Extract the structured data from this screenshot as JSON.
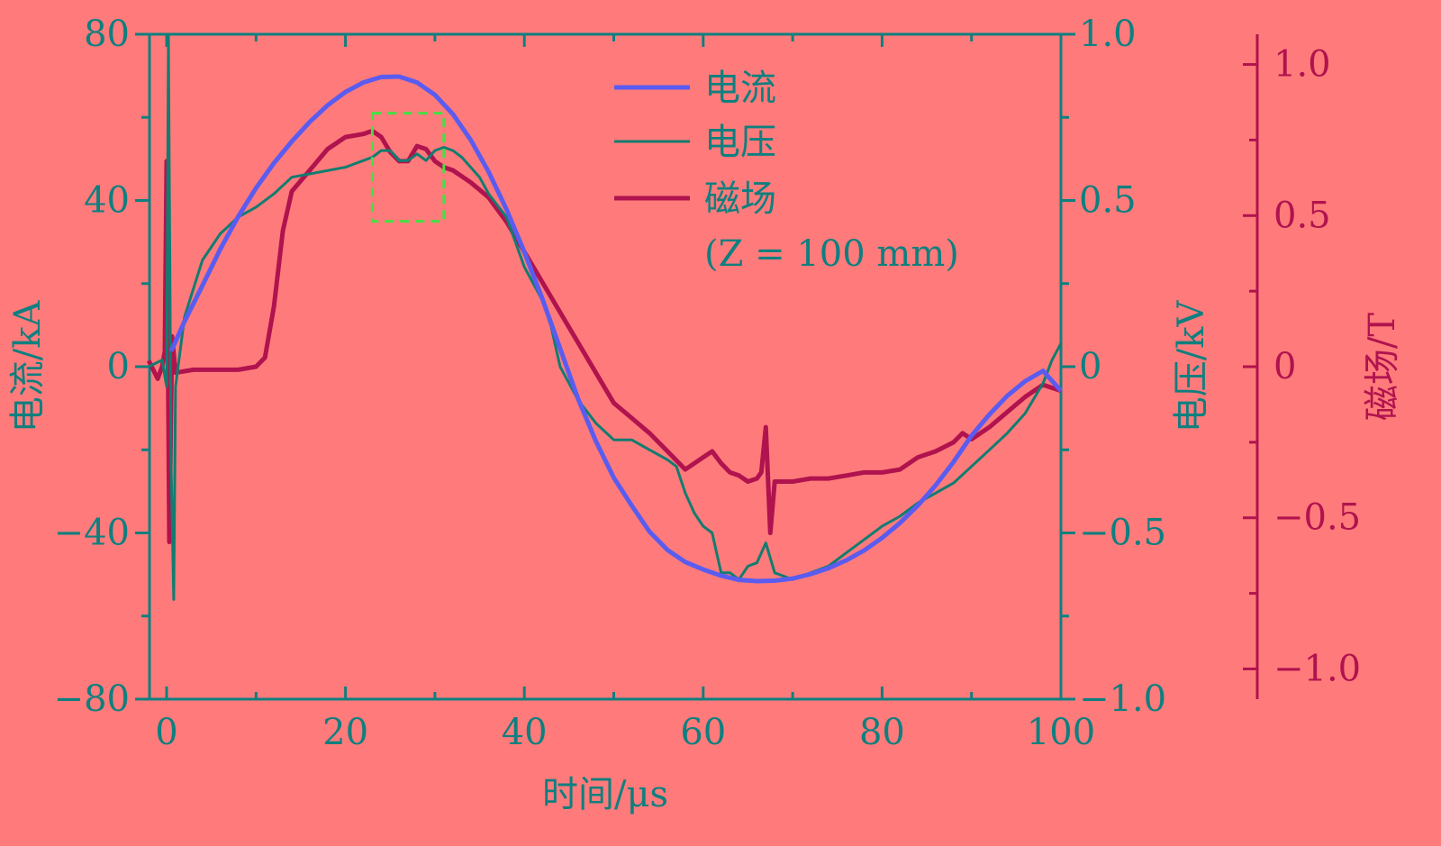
{
  "colors": {
    "background": "#ff7b7b",
    "axis_teal": "#0f7f7f",
    "axis_magenta": "#b0134e",
    "current": "#5a5cf0",
    "voltage": "#127c70",
    "magnetic": "#b0134e",
    "roi_box": "#44e044"
  },
  "chart_data": {
    "type": "line",
    "xlabel": "时间/μs",
    "xlim": [
      -2,
      100
    ],
    "x_ticks": [
      0,
      20,
      40,
      60,
      80,
      100
    ],
    "axes": {
      "current": {
        "label": "电流/kA",
        "lim": [
          -80,
          80
        ],
        "ticks": [
          -80,
          -40,
          0,
          40,
          80
        ],
        "tick_labels": [
          "−80",
          "−40",
          "0",
          "40",
          "80"
        ]
      },
      "voltage": {
        "label": "电压/kV",
        "lim": [
          -1.0,
          1.0
        ],
        "ticks": [
          -1.0,
          -0.5,
          0,
          0.5,
          1.0
        ],
        "tick_labels": [
          "−1.0",
          "−0.5",
          "0",
          "0.5",
          "1.0"
        ]
      },
      "magnetic": {
        "label": "磁场/T",
        "lim": [
          -1.1,
          1.1
        ],
        "ticks": [
          -1.0,
          -0.5,
          0,
          0.5,
          1.0
        ],
        "tick_labels": [
          "−1.0",
          "−0.5",
          "0",
          "0.5",
          "1.0"
        ]
      }
    },
    "legend": {
      "position": "top-center",
      "entries": [
        "电流",
        "电压",
        "磁场"
      ],
      "note": "(Z = 100 mm)"
    },
    "series": [
      {
        "name": "电流",
        "axis": "current",
        "x": [
          0.5,
          2,
          4,
          6,
          8,
          10,
          12,
          14,
          16,
          18,
          20,
          22,
          24,
          26,
          28,
          30,
          32,
          34,
          36,
          38,
          40,
          42,
          44,
          46,
          48,
          50,
          52,
          54,
          56,
          58,
          60,
          62,
          64,
          66,
          68,
          70,
          72,
          74,
          76,
          78,
          80,
          82,
          84,
          86,
          88,
          90,
          92,
          94,
          96,
          98,
          100
        ],
        "values": [
          3.7,
          10.9,
          19.5,
          28.3,
          36.1,
          43.0,
          49.0,
          54.2,
          58.9,
          62.9,
          66.1,
          68.4,
          69.7,
          69.8,
          68.4,
          65.4,
          60.8,
          54.6,
          46.9,
          37.9,
          27.6,
          16.4,
          4.4,
          -7.7,
          -17.9,
          -26.7,
          -33.4,
          -39.7,
          -44.1,
          -47.0,
          -48.8,
          -50.3,
          -51.3,
          -51.6,
          -51.5,
          -51.0,
          -49.9,
          -48.5,
          -46.6,
          -44.2,
          -41.2,
          -37.6,
          -33.4,
          -28.5,
          -22.9,
          -16.6,
          -11.5,
          -7.0,
          -3.5,
          -1.0,
          -5.8
        ]
      },
      {
        "name": "电压",
        "axis": "voltage",
        "x": [
          -2,
          -0.5,
          0,
          0.2,
          0.5,
          0.8,
          1,
          2,
          4,
          6,
          8,
          10,
          12,
          14,
          16,
          18,
          20,
          21,
          22,
          23,
          24,
          25,
          26,
          27,
          28,
          29,
          30,
          31,
          32,
          33,
          34,
          35,
          36,
          38,
          40,
          42,
          43,
          44,
          46,
          48,
          50,
          52,
          54,
          56,
          57,
          58,
          59,
          60,
          61,
          62,
          63,
          64,
          65,
          66,
          67,
          68,
          69,
          70,
          72,
          74,
          76,
          78,
          80,
          82,
          84,
          86,
          88,
          90,
          92,
          94,
          96,
          98,
          99,
          100
        ],
        "values": [
          0,
          0.02,
          -0.06,
          1.0,
          -0.3,
          -0.7,
          -0.06,
          0.15,
          0.32,
          0.4,
          0.45,
          0.48,
          0.52,
          0.57,
          0.58,
          0.59,
          0.6,
          0.61,
          0.62,
          0.63,
          0.65,
          0.65,
          0.62,
          0.62,
          0.64,
          0.62,
          0.65,
          0.66,
          0.65,
          0.63,
          0.6,
          0.57,
          0.52,
          0.45,
          0.3,
          0.2,
          0.12,
          0.0,
          -0.1,
          -0.17,
          -0.22,
          -0.22,
          -0.25,
          -0.28,
          -0.3,
          -0.38,
          -0.44,
          -0.48,
          -0.5,
          -0.62,
          -0.62,
          -0.64,
          -0.6,
          -0.59,
          -0.53,
          -0.62,
          -0.63,
          -0.64,
          -0.62,
          -0.6,
          -0.56,
          -0.52,
          -0.48,
          -0.45,
          -0.41,
          -0.38,
          -0.35,
          -0.3,
          -0.25,
          -0.2,
          -0.14,
          -0.05,
          0.02,
          0.07
        ]
      },
      {
        "name": "磁场",
        "axis": "magnetic",
        "x": [
          -2,
          -1,
          -0.5,
          -0.2,
          0,
          0.3,
          0.6,
          1,
          3,
          5,
          8,
          10,
          11,
          12,
          13,
          14,
          16,
          18,
          20,
          22,
          23,
          24,
          25,
          26,
          27,
          28,
          29,
          30,
          31,
          32,
          34,
          36,
          38,
          40,
          42,
          44,
          46,
          48,
          50,
          52,
          54,
          56,
          58,
          59,
          60,
          61,
          62,
          63,
          64,
          65,
          66,
          66.5,
          67,
          67.5,
          68,
          70,
          72,
          74,
          76,
          78,
          80,
          82,
          84,
          86,
          88,
          89,
          90,
          92,
          94,
          96,
          98,
          100
        ],
        "values": [
          0.02,
          -0.04,
          0.0,
          0.05,
          0.68,
          -0.58,
          0.1,
          -0.02,
          -0.01,
          -0.01,
          -0.01,
          0.0,
          0.03,
          0.2,
          0.45,
          0.58,
          0.65,
          0.72,
          0.76,
          0.77,
          0.78,
          0.76,
          0.71,
          0.68,
          0.68,
          0.73,
          0.72,
          0.68,
          0.66,
          0.65,
          0.61,
          0.56,
          0.48,
          0.38,
          0.28,
          0.18,
          0.08,
          -0.02,
          -0.12,
          -0.17,
          -0.22,
          -0.28,
          -0.34,
          -0.32,
          -0.3,
          -0.28,
          -0.32,
          -0.35,
          -0.36,
          -0.38,
          -0.37,
          -0.35,
          -0.2,
          -0.55,
          -0.38,
          -0.38,
          -0.37,
          -0.37,
          -0.36,
          -0.35,
          -0.35,
          -0.34,
          -0.3,
          -0.28,
          -0.25,
          -0.22,
          -0.24,
          -0.2,
          -0.15,
          -0.1,
          -0.06,
          -0.08
        ]
      }
    ],
    "annotations": [
      {
        "type": "dashed-box",
        "x": [
          23,
          31
        ],
        "current": [
          35,
          61
        ]
      }
    ]
  }
}
